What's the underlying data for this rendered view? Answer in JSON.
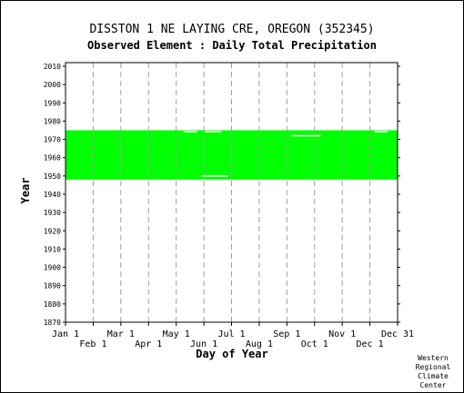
{
  "title": "DISSTON 1 NE LAYING CRE, OREGON   (352345)",
  "subtitle": "Observed Element : Daily Total Precipitation",
  "credit": [
    "Western",
    "Regional",
    "Climate",
    "Center"
  ],
  "chart_data": {
    "type": "area",
    "title": "DISSTON 1 NE LAYING CRE, OREGON   (352345)",
    "subtitle": "Observed Element : Daily Total Precipitation",
    "xlabel": "Day of Year",
    "ylabel": "Year",
    "ylim": [
      1870,
      2012
    ],
    "yticks": [
      1870,
      1880,
      1890,
      1900,
      1910,
      1920,
      1930,
      1940,
      1950,
      1960,
      1970,
      1980,
      1990,
      2000,
      2010
    ],
    "xticks_upper": [
      "Jan 1",
      "Mar 1",
      "May 1",
      "Jul 1",
      "Sep 1",
      "Nov 1",
      "Dec 31"
    ],
    "xticks_lower": [
      "Feb 1",
      "Apr 1",
      "Jun 1",
      "Aug 1",
      "Oct 1",
      "Dec 1"
    ],
    "grid": true,
    "fill_color": "#00ff00",
    "gap_color": "#ffffff",
    "coverage": {
      "start_year": 1948,
      "end_year": 1975,
      "note_start": "Jan 1",
      "note_end": "Dec 31"
    }
  }
}
